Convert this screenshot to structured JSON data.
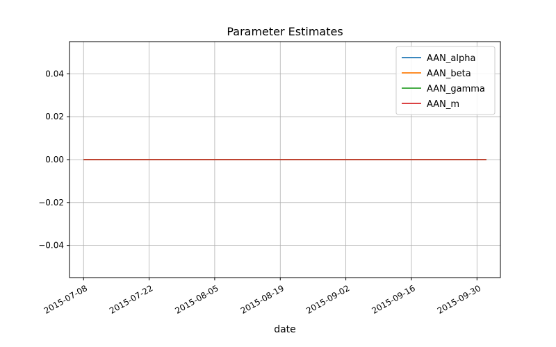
{
  "chart_data": {
    "type": "line",
    "title": "Parameter Estimates",
    "xlabel": "date",
    "ylabel": "",
    "x_type": "date",
    "xlim": [
      "2015-07-08",
      "2015-10-02"
    ],
    "ylim": [
      -0.055,
      0.055
    ],
    "x_ticks": [
      "2015-07-08",
      "2015-07-22",
      "2015-08-05",
      "2015-08-19",
      "2015-09-02",
      "2015-09-16",
      "2015-09-30"
    ],
    "y_ticks": [
      -0.04,
      -0.02,
      0.0,
      0.02,
      0.04
    ],
    "y_tick_labels": [
      "−0.04",
      "−0.02",
      "0.00",
      "0.02",
      "0.04"
    ],
    "grid": true,
    "legend_position": "top-right",
    "x": [
      "2015-07-08",
      "2015-10-02"
    ],
    "series": [
      {
        "name": "AAN_alpha",
        "color": "#1f77b4",
        "values": [
          0,
          0
        ]
      },
      {
        "name": "AAN_beta",
        "color": "#ff7f0e",
        "values": [
          0,
          0
        ]
      },
      {
        "name": "AAN_gamma",
        "color": "#2ca02c",
        "values": [
          0,
          0
        ]
      },
      {
        "name": "AAN_m",
        "color": "#d62728",
        "values": [
          0,
          0
        ]
      }
    ]
  }
}
